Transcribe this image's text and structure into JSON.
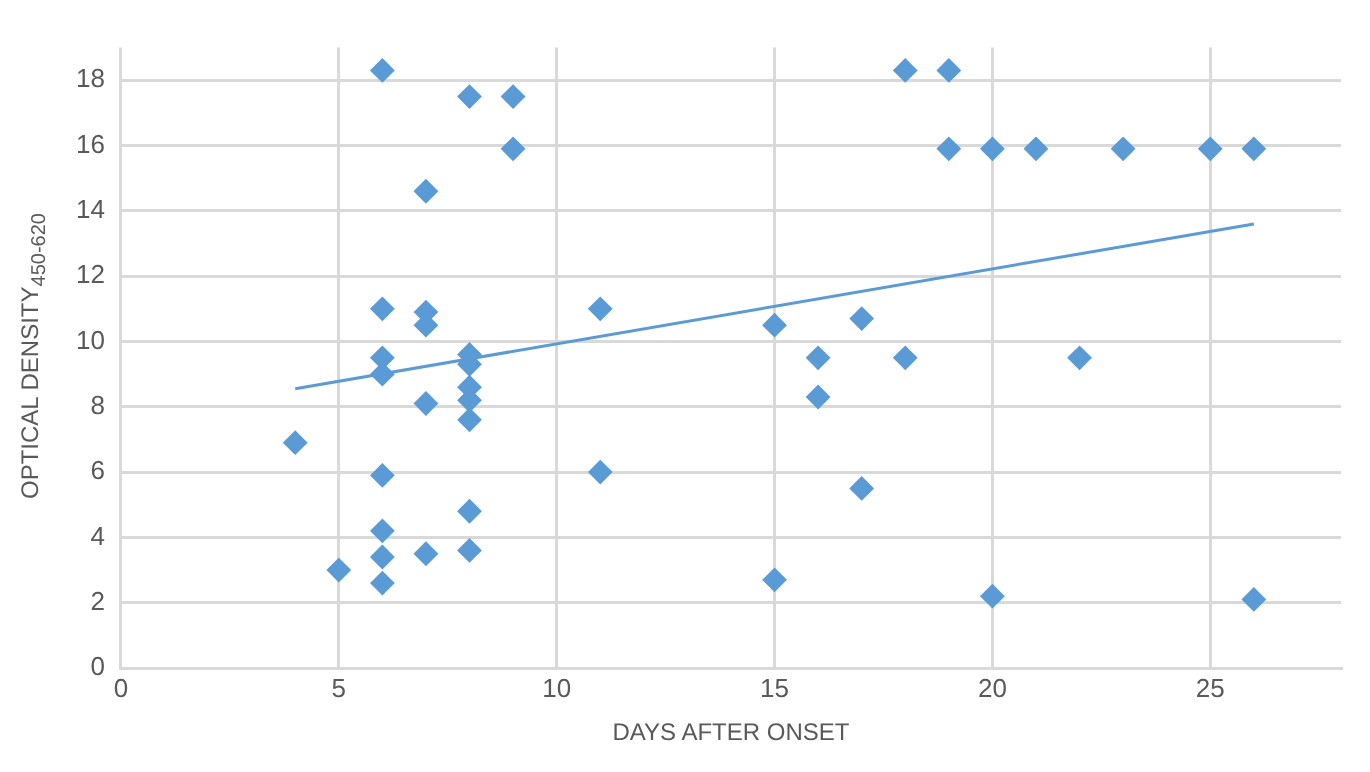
{
  "chart_data": {
    "type": "scatter",
    "xlabel": "DAYS AFTER ONSET",
    "ylabel": "OPTICAL DENSITY$_{450-620}$",
    "xlim": [
      0,
      28
    ],
    "xticks": [
      0,
      5,
      10,
      15,
      20,
      25
    ],
    "ylim": [
      0,
      19
    ],
    "yticks": [
      0,
      2,
      4,
      6,
      8,
      10,
      12,
      14,
      16,
      18
    ],
    "grid": true,
    "legend": false,
    "series": [
      {
        "marker": "diamond",
        "color": "#5b9bd5",
        "x": [
          4,
          5,
          6,
          6,
          6,
          6,
          6,
          6,
          6,
          6,
          7,
          7,
          7,
          7,
          7,
          8,
          8,
          8,
          8,
          8,
          8,
          8,
          8,
          9,
          9,
          11,
          11,
          15,
          15,
          16,
          16,
          17,
          17,
          18,
          18,
          19,
          19,
          20,
          20,
          21,
          22,
          23,
          25,
          26,
          26
        ],
        "values": [
          6.9,
          3.0,
          18.3,
          11.0,
          9.5,
          9.0,
          5.9,
          4.2,
          3.4,
          2.6,
          14.6,
          10.9,
          10.5,
          8.1,
          3.5,
          17.5,
          9.6,
          9.3,
          8.6,
          8.2,
          7.6,
          4.8,
          3.6,
          17.5,
          15.9,
          11.0,
          6.0,
          10.5,
          2.7,
          9.5,
          8.3,
          10.7,
          5.5,
          18.3,
          9.5,
          18.3,
          15.9,
          15.9,
          2.2,
          15.9,
          9.5,
          15.9,
          15.9,
          15.9,
          2.1
        ]
      },
      {
        "type": "line",
        "marker": "none",
        "color": "#5b9bd5",
        "x": [
          4,
          26
        ],
        "values": [
          8.55,
          13.6
        ]
      }
    ]
  }
}
